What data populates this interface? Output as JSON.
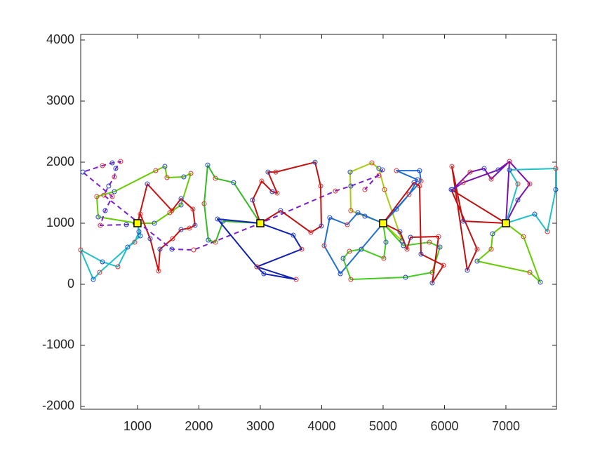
{
  "chart_data": {
    "type": "line",
    "xlim": [
      75,
      7823
    ],
    "ylim": [
      -2046,
      4092
    ],
    "xticks": [
      1000,
      2000,
      3000,
      4000,
      5000,
      6000,
      7000
    ],
    "yticks": [
      -2000,
      -1000,
      0,
      1000,
      2000,
      3000,
      4000
    ],
    "grid": false,
    "marker_colors": [
      "#e03030",
      "#2040d0"
    ],
    "depots": {
      "x": [
        1000,
        3000,
        5000,
        7000
      ],
      "y": [
        1000,
        1000,
        1000,
        1000
      ],
      "color": "#ffff00"
    },
    "series": [
      {
        "color": "#66cc00",
        "x": [
          1000,
          360,
          337,
          623,
          1297,
          1446,
          1480,
          1754,
          1869,
          1709,
          1526,
          1274,
          1000
        ],
        "y": [
          1000,
          1103,
          1437,
          1517,
          1862,
          1931,
          1747,
          1759,
          1816,
          1299,
          1172,
          1000,
          1000
        ]
      },
      {
        "color": "#cc1010",
        "x": [
          1000,
          1160,
          1560,
          1709,
          1903,
          1937,
          1846,
          1709,
          1572,
          1366,
          1343,
          1206,
          1046,
          1000
        ],
        "y": [
          1000,
          1643,
          1207,
          1402,
          1230,
          965,
          919,
          896,
          747,
          575,
          218,
          747,
          1149,
          1000
        ]
      },
      {
        "color": "#1fc0c8",
        "x": [
          1000,
          1023,
          954,
          840,
          680,
          429,
          74,
          280,
          383,
          1046,
          1000
        ],
        "y": [
          1000,
          862,
          689,
          609,
          287,
          368,
          563,
          80,
          195,
          793,
          1000
        ]
      },
      {
        "color": "#7a1fd0",
        "dashed": true,
        "x": [
          1000,
          817,
          394,
          474,
          589,
          109,
          429,
          589,
          726,
          646,
          623,
          531,
          451,
          1560,
          1914,
          3000,
          4223,
          4474,
          4931,
          4989,
          4703
        ],
        "y": [
          1000,
          977,
          965,
          1206,
          1437,
          1838,
          1942,
          1988,
          2011,
          1896,
          1758,
          1609,
          1459,
          575,
          563,
          1000,
          1528,
          1609,
          1781,
          1873,
          1551
        ]
      },
      {
        "color": "#33bb22",
        "x": [
          3000,
          2394,
          2269,
          2154,
          2086,
          2143,
          2269,
          2566,
          3000
        ],
        "y": [
          1000,
          1034,
          689,
          724,
          1321,
          1953,
          1735,
          1666,
          1000
        ]
      },
      {
        "color": "#c01010",
        "x": [
          3000,
          2874,
          3023,
          3194,
          3274,
          3126,
          3252,
          3892,
          3983,
          3994,
          3823,
          3331,
          3000
        ],
        "y": [
          1000,
          1379,
          1689,
          1517,
          1494,
          1838,
          1838,
          1999,
          1609,
          954,
          850,
          1206,
          1000
        ]
      },
      {
        "color": "#1020b0",
        "x": [
          3000,
          3537,
          3674,
          2943,
          3583,
          3057,
          2943,
          2303,
          3000
        ],
        "y": [
          1000,
          804,
          575,
          287,
          80,
          172,
          287,
          1069,
          1000
        ]
      },
      {
        "color": "#a8cc10",
        "x": [
          5000,
          4703,
          4474,
          4463,
          4817,
          4931,
          5023,
          5309,
          5000
        ],
        "y": [
          1000,
          1115,
          1206,
          1838,
          1988,
          1896,
          1551,
          712,
          1000
        ]
      },
      {
        "color": "#1f6fd0",
        "x": [
          5000,
          4303,
          4040,
          4131,
          4417,
          4589,
          5000
        ],
        "y": [
          1000,
          172,
          632,
          1091,
          977,
          1172,
          1000
        ]
      },
      {
        "color": "#1f6fd0",
        "x": [
          5000,
          5217,
          5423,
          5560,
          5217,
          5594,
          5617,
          5000
        ],
        "y": [
          1000,
          1229,
          1471,
          1712,
          1861,
          1861,
          1689,
          1000
        ]
      },
      {
        "color": "#44cc22",
        "x": [
          5000,
          5331,
          5754,
          5926,
          5800,
          5366,
          4474,
          4349,
          4451,
          4646,
          5011,
          5046,
          5000
        ],
        "y": [
          1000,
          632,
          689,
          609,
          195,
          115,
          80,
          425,
          540,
          575,
          425,
          689,
          1000
        ]
      },
      {
        "color": "#c01010",
        "x": [
          5000,
          5274,
          5389,
          5446,
          5903,
          5800,
          5983,
          5617,
          5594,
          5503,
          5000
        ],
        "y": [
          1000,
          862,
          575,
          770,
          781,
          23,
          310,
          494,
          1609,
          1666,
          1000
        ]
      },
      {
        "color": "#c01010",
        "x": [
          7000,
          6303,
          6120,
          6371,
          6531,
          6109,
          7000
        ],
        "y": [
          1000,
          1034,
          1930,
          230,
          575,
          1551,
          1000
        ]
      },
      {
        "color": "#7a10b0",
        "x": [
          7000,
          7194,
          7389,
          7057,
          6760,
          6646,
          6417,
          6131,
          6303,
          6874,
          7057,
          7000
        ],
        "y": [
          1000,
          1379,
          1643,
          2011,
          1723,
          1896,
          1838,
          1551,
          1666,
          1873,
          2011,
          1000
        ]
      },
      {
        "color": "#1fc0c8",
        "x": [
          7000,
          7469,
          7674,
          7811,
          7811,
          7057,
          7194,
          7000
        ],
        "y": [
          1000,
          1149,
          862,
          1551,
          1896,
          1873,
          1643,
          1000
        ]
      },
      {
        "color": "#66cc00",
        "x": [
          7000,
          6783,
          6760,
          6531,
          7389,
          7560,
          7286,
          7000
        ],
        "y": [
          1000,
          827,
          575,
          379,
          195,
          34,
          781,
          1000
        ]
      }
    ]
  }
}
